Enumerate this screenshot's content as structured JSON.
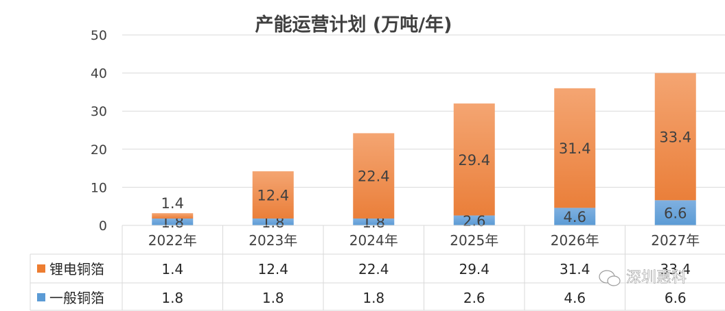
{
  "chart_data": {
    "type": "bar",
    "stacked": true,
    "title": "产能运营计划 (万吨/年)",
    "categories": [
      "2022年",
      "2023年",
      "2024年",
      "2025年",
      "2026年",
      "2027年"
    ],
    "series": [
      {
        "name": "一般铜箔",
        "values": [
          1.8,
          1.8,
          1.8,
          2.6,
          4.6,
          6.6
        ],
        "value_labels": [
          "1.8",
          "1.8",
          "1.8",
          "2.6",
          "4.6",
          "6.6"
        ],
        "color": "#5b9bd5"
      },
      {
        "name": "锂电铜箔",
        "values": [
          1.4,
          12.4,
          22.4,
          29.4,
          31.4,
          33.4
        ],
        "value_labels": [
          "1.4",
          "12.4",
          "22.4",
          "29.4",
          "31.4",
          "33.4"
        ],
        "color": "#ed7d31"
      }
    ],
    "ylim": [
      0,
      50
    ],
    "yticks": [
      "0",
      "10",
      "20",
      "30",
      "40",
      "50"
    ],
    "grid": true,
    "legend": "data-table",
    "data_table": true
  },
  "watermark": "深圳惠科",
  "colors": {
    "blue_light": "#9dc3e6",
    "orange_light": "#f4b183",
    "grid": "#d9d9d9"
  }
}
